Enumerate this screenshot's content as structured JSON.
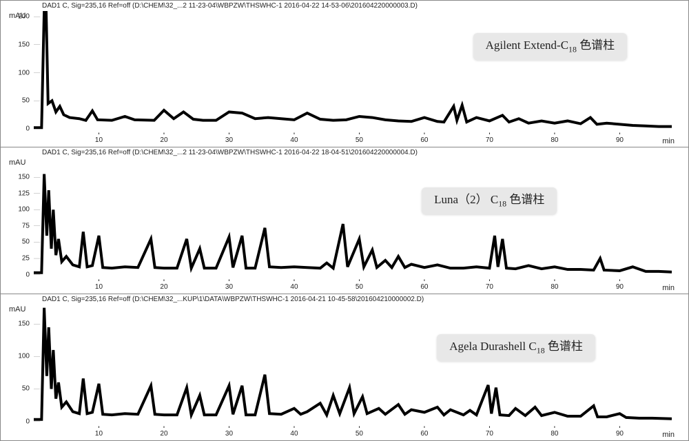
{
  "figure": {
    "type": "chromatogram-stack",
    "background_color": "#ffffff",
    "grid_color": "#e0e0e0",
    "line_color": "#000000",
    "line_width": 1,
    "panels": [
      {
        "header": "DAD1 C, Sig=235,16 Ref=off (D:\\CHEM\\32_...2 11-23-04\\WBPZW\\THSWHC-1 2016-04-22 14-53-06\\201604220000003.D)",
        "label_text_main": "Agilent Extend-C",
        "label_sub": "18",
        "label_suffix": " 色谱柱",
        "label_box": {
          "right_pct": 7,
          "top_pct": 18
        },
        "y_unit": "mAU",
        "x_unit": "min",
        "xlim": [
          0,
          98
        ],
        "ylim": [
          -10,
          210
        ],
        "xticks": [
          10,
          20,
          30,
          40,
          50,
          60,
          70,
          80,
          90
        ],
        "yticks": [
          0,
          50,
          100,
          150,
          200
        ],
        "trace": [
          {
            "x": 0,
            "y": 2
          },
          {
            "x": 1.2,
            "y": 2
          },
          {
            "x": 1.6,
            "y": 210
          },
          {
            "x": 1.9,
            "y": 210
          },
          {
            "x": 2.2,
            "y": 45
          },
          {
            "x": 2.8,
            "y": 50
          },
          {
            "x": 3.4,
            "y": 30
          },
          {
            "x": 4,
            "y": 40
          },
          {
            "x": 4.6,
            "y": 25
          },
          {
            "x": 5.5,
            "y": 20
          },
          {
            "x": 7,
            "y": 18
          },
          {
            "x": 8,
            "y": 15
          },
          {
            "x": 9,
            "y": 32
          },
          {
            "x": 9.8,
            "y": 16
          },
          {
            "x": 12,
            "y": 15
          },
          {
            "x": 14,
            "y": 22
          },
          {
            "x": 15.5,
            "y": 16
          },
          {
            "x": 18.5,
            "y": 15
          },
          {
            "x": 20,
            "y": 33
          },
          {
            "x": 21.5,
            "y": 18
          },
          {
            "x": 23,
            "y": 30
          },
          {
            "x": 24.5,
            "y": 17
          },
          {
            "x": 26,
            "y": 15
          },
          {
            "x": 28,
            "y": 15
          },
          {
            "x": 30,
            "y": 30
          },
          {
            "x": 32,
            "y": 28
          },
          {
            "x": 34,
            "y": 18
          },
          {
            "x": 36,
            "y": 20
          },
          {
            "x": 38,
            "y": 18
          },
          {
            "x": 40,
            "y": 16
          },
          {
            "x": 42,
            "y": 28
          },
          {
            "x": 44,
            "y": 17
          },
          {
            "x": 46,
            "y": 15
          },
          {
            "x": 48,
            "y": 16
          },
          {
            "x": 50,
            "y": 22
          },
          {
            "x": 52,
            "y": 20
          },
          {
            "x": 54,
            "y": 16
          },
          {
            "x": 56,
            "y": 14
          },
          {
            "x": 58,
            "y": 13
          },
          {
            "x": 60,
            "y": 20
          },
          {
            "x": 62,
            "y": 13
          },
          {
            "x": 63,
            "y": 12
          },
          {
            "x": 64.5,
            "y": 40
          },
          {
            "x": 65,
            "y": 15
          },
          {
            "x": 65.8,
            "y": 42
          },
          {
            "x": 66.5,
            "y": 12
          },
          {
            "x": 68,
            "y": 20
          },
          {
            "x": 70,
            "y": 14
          },
          {
            "x": 72,
            "y": 24
          },
          {
            "x": 73,
            "y": 12
          },
          {
            "x": 74.5,
            "y": 18
          },
          {
            "x": 76,
            "y": 10
          },
          {
            "x": 78,
            "y": 14
          },
          {
            "x": 80,
            "y": 10
          },
          {
            "x": 82,
            "y": 14
          },
          {
            "x": 84,
            "y": 9
          },
          {
            "x": 85.5,
            "y": 20
          },
          {
            "x": 86.5,
            "y": 8
          },
          {
            "x": 88,
            "y": 10
          },
          {
            "x": 90,
            "y": 8
          },
          {
            "x": 92,
            "y": 6
          },
          {
            "x": 94,
            "y": 5
          },
          {
            "x": 96,
            "y": 4
          },
          {
            "x": 98,
            "y": 4
          }
        ]
      },
      {
        "header": "DAD1 C, Sig=235,16 Ref=off (D:\\CHEM\\32_...2 11-23-04\\WBPZW\\THSWHC-1 2016-04-22 18-04-51\\201604220000004.D)",
        "label_text_main": "Luna（2）  C",
        "label_sub": "18",
        "label_suffix": "  色谱柱",
        "label_box": {
          "right_pct": 18,
          "top_pct": 24
        },
        "y_unit": "mAU",
        "x_unit": "min",
        "xlim": [
          0,
          98
        ],
        "ylim": [
          -10,
          180
        ],
        "xticks": [
          10,
          20,
          30,
          40,
          50,
          60,
          70,
          80,
          90
        ],
        "yticks": [
          0,
          25,
          50,
          75,
          100,
          125,
          150
        ],
        "trace": [
          {
            "x": 0,
            "y": 3
          },
          {
            "x": 1.2,
            "y": 3
          },
          {
            "x": 1.6,
            "y": 155
          },
          {
            "x": 2,
            "y": 60
          },
          {
            "x": 2.3,
            "y": 130
          },
          {
            "x": 2.7,
            "y": 40
          },
          {
            "x": 3,
            "y": 100
          },
          {
            "x": 3.4,
            "y": 30
          },
          {
            "x": 3.8,
            "y": 55
          },
          {
            "x": 4.3,
            "y": 20
          },
          {
            "x": 5,
            "y": 28
          },
          {
            "x": 6,
            "y": 15
          },
          {
            "x": 7,
            "y": 12
          },
          {
            "x": 7.6,
            "y": 66
          },
          {
            "x": 8.2,
            "y": 12
          },
          {
            "x": 9,
            "y": 14
          },
          {
            "x": 10,
            "y": 60
          },
          {
            "x": 10.6,
            "y": 11
          },
          {
            "x": 12,
            "y": 10
          },
          {
            "x": 14,
            "y": 12
          },
          {
            "x": 16,
            "y": 11
          },
          {
            "x": 18,
            "y": 55
          },
          {
            "x": 18.6,
            "y": 11
          },
          {
            "x": 20,
            "y": 10
          },
          {
            "x": 22,
            "y": 10
          },
          {
            "x": 23.5,
            "y": 55
          },
          {
            "x": 24.2,
            "y": 10
          },
          {
            "x": 25.5,
            "y": 40
          },
          {
            "x": 26.2,
            "y": 10
          },
          {
            "x": 28,
            "y": 10
          },
          {
            "x": 30,
            "y": 58
          },
          {
            "x": 30.6,
            "y": 11
          },
          {
            "x": 32,
            "y": 60
          },
          {
            "x": 32.6,
            "y": 10
          },
          {
            "x": 34,
            "y": 10
          },
          {
            "x": 35.5,
            "y": 72
          },
          {
            "x": 36.2,
            "y": 12
          },
          {
            "x": 38,
            "y": 11
          },
          {
            "x": 40,
            "y": 12
          },
          {
            "x": 42,
            "y": 11
          },
          {
            "x": 44,
            "y": 10
          },
          {
            "x": 45,
            "y": 18
          },
          {
            "x": 46,
            "y": 10
          },
          {
            "x": 47.5,
            "y": 78
          },
          {
            "x": 48.2,
            "y": 12
          },
          {
            "x": 50,
            "y": 55
          },
          {
            "x": 50.7,
            "y": 12
          },
          {
            "x": 52,
            "y": 38
          },
          {
            "x": 52.7,
            "y": 11
          },
          {
            "x": 54,
            "y": 22
          },
          {
            "x": 55,
            "y": 11
          },
          {
            "x": 56,
            "y": 28
          },
          {
            "x": 57,
            "y": 11
          },
          {
            "x": 58,
            "y": 16
          },
          {
            "x": 60,
            "y": 11
          },
          {
            "x": 62,
            "y": 15
          },
          {
            "x": 64,
            "y": 10
          },
          {
            "x": 66,
            "y": 10
          },
          {
            "x": 68,
            "y": 12
          },
          {
            "x": 70,
            "y": 10
          },
          {
            "x": 70.8,
            "y": 60
          },
          {
            "x": 71.3,
            "y": 12
          },
          {
            "x": 72,
            "y": 55
          },
          {
            "x": 72.6,
            "y": 10
          },
          {
            "x": 74,
            "y": 9
          },
          {
            "x": 76,
            "y": 14
          },
          {
            "x": 78,
            "y": 9
          },
          {
            "x": 80,
            "y": 12
          },
          {
            "x": 82,
            "y": 8
          },
          {
            "x": 84,
            "y": 8
          },
          {
            "x": 86,
            "y": 7
          },
          {
            "x": 87,
            "y": 25
          },
          {
            "x": 87.6,
            "y": 7
          },
          {
            "x": 90,
            "y": 6
          },
          {
            "x": 92,
            "y": 12
          },
          {
            "x": 94,
            "y": 5
          },
          {
            "x": 96,
            "y": 5
          },
          {
            "x": 98,
            "y": 4
          }
        ]
      },
      {
        "header": "DAD1 C, Sig=235,16 Ref=off (D:\\CHEM\\32_...KUP\\1\\DATA\\WBPZW\\THSWHC-1 2016-04-21 10-45-58\\201604210000002.D)",
        "label_text_main": "Agela Durashell C",
        "label_sub": "18",
        "label_suffix": "  色谱柱",
        "label_box": {
          "right_pct": 12,
          "top_pct": 24
        },
        "y_unit": "mAU",
        "x_unit": "min",
        "xlim": [
          0,
          98
        ],
        "ylim": [
          -10,
          180
        ],
        "xticks": [
          10,
          20,
          30,
          40,
          50,
          60,
          70,
          80,
          90
        ],
        "yticks": [
          0,
          50,
          100,
          150
        ],
        "trace": [
          {
            "x": 0,
            "y": 3
          },
          {
            "x": 1.2,
            "y": 3
          },
          {
            "x": 1.6,
            "y": 175
          },
          {
            "x": 2,
            "y": 70
          },
          {
            "x": 2.3,
            "y": 145
          },
          {
            "x": 2.7,
            "y": 50
          },
          {
            "x": 3,
            "y": 110
          },
          {
            "x": 3.4,
            "y": 35
          },
          {
            "x": 3.8,
            "y": 60
          },
          {
            "x": 4.3,
            "y": 22
          },
          {
            "x": 5,
            "y": 30
          },
          {
            "x": 6,
            "y": 15
          },
          {
            "x": 7,
            "y": 12
          },
          {
            "x": 7.6,
            "y": 66
          },
          {
            "x": 8.2,
            "y": 12
          },
          {
            "x": 9,
            "y": 14
          },
          {
            "x": 10,
            "y": 58
          },
          {
            "x": 10.6,
            "y": 11
          },
          {
            "x": 12,
            "y": 10
          },
          {
            "x": 14,
            "y": 12
          },
          {
            "x": 16,
            "y": 11
          },
          {
            "x": 18,
            "y": 55
          },
          {
            "x": 18.6,
            "y": 11
          },
          {
            "x": 20,
            "y": 10
          },
          {
            "x": 22,
            "y": 10
          },
          {
            "x": 23.5,
            "y": 52
          },
          {
            "x": 24.2,
            "y": 10
          },
          {
            "x": 25.5,
            "y": 40
          },
          {
            "x": 26.2,
            "y": 10
          },
          {
            "x": 28,
            "y": 10
          },
          {
            "x": 30,
            "y": 55
          },
          {
            "x": 30.6,
            "y": 11
          },
          {
            "x": 32,
            "y": 55
          },
          {
            "x": 32.6,
            "y": 10
          },
          {
            "x": 34,
            "y": 10
          },
          {
            "x": 35.5,
            "y": 72
          },
          {
            "x": 36.2,
            "y": 12
          },
          {
            "x": 38,
            "y": 11
          },
          {
            "x": 40,
            "y": 20
          },
          {
            "x": 41,
            "y": 11
          },
          {
            "x": 42,
            "y": 15
          },
          {
            "x": 44,
            "y": 28
          },
          {
            "x": 45,
            "y": 10
          },
          {
            "x": 46,
            "y": 40
          },
          {
            "x": 47,
            "y": 12
          },
          {
            "x": 48.5,
            "y": 52
          },
          {
            "x": 49.2,
            "y": 12
          },
          {
            "x": 50.5,
            "y": 38
          },
          {
            "x": 51.2,
            "y": 12
          },
          {
            "x": 53,
            "y": 20
          },
          {
            "x": 54,
            "y": 11
          },
          {
            "x": 56,
            "y": 26
          },
          {
            "x": 57,
            "y": 11
          },
          {
            "x": 58,
            "y": 18
          },
          {
            "x": 60,
            "y": 14
          },
          {
            "x": 62,
            "y": 22
          },
          {
            "x": 63,
            "y": 10
          },
          {
            "x": 64,
            "y": 18
          },
          {
            "x": 66,
            "y": 10
          },
          {
            "x": 67,
            "y": 17
          },
          {
            "x": 68,
            "y": 10
          },
          {
            "x": 69.8,
            "y": 56
          },
          {
            "x": 70.3,
            "y": 12
          },
          {
            "x": 71,
            "y": 52
          },
          {
            "x": 71.6,
            "y": 10
          },
          {
            "x": 73,
            "y": 9
          },
          {
            "x": 74,
            "y": 20
          },
          {
            "x": 75.5,
            "y": 9
          },
          {
            "x": 77,
            "y": 22
          },
          {
            "x": 78,
            "y": 9
          },
          {
            "x": 80,
            "y": 14
          },
          {
            "x": 82,
            "y": 8
          },
          {
            "x": 84,
            "y": 8
          },
          {
            "x": 86,
            "y": 24
          },
          {
            "x": 86.6,
            "y": 7
          },
          {
            "x": 88,
            "y": 7
          },
          {
            "x": 90,
            "y": 12
          },
          {
            "x": 91,
            "y": 6
          },
          {
            "x": 93,
            "y": 5
          },
          {
            "x": 95,
            "y": 5
          },
          {
            "x": 98,
            "y": 4
          }
        ]
      }
    ]
  }
}
